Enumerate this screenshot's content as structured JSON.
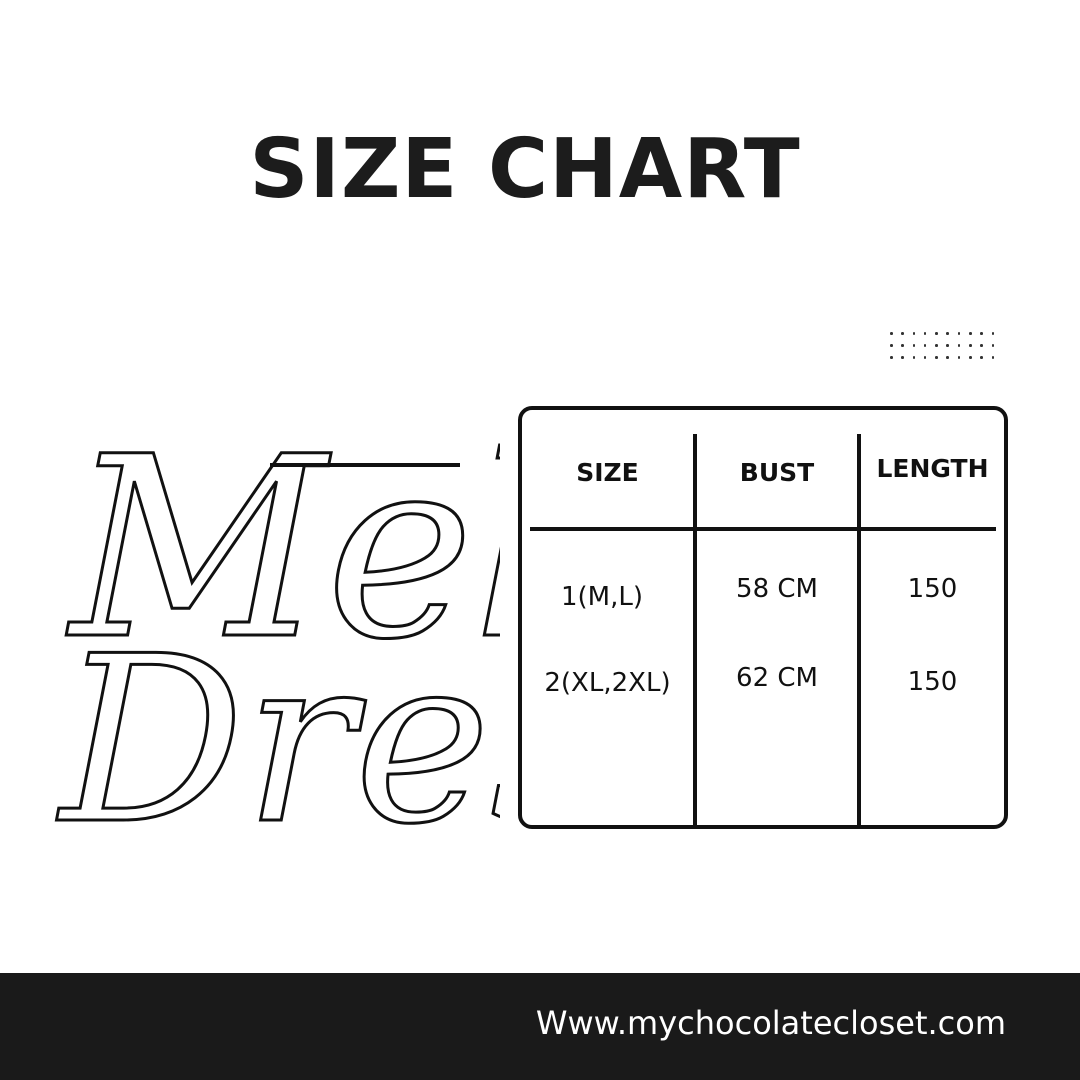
{
  "title": "SIZE CHART",
  "script_title": {
    "line1": "Melt",
    "line2": "Dress"
  },
  "table": {
    "headers": [
      "SIZE",
      "BUST",
      "LENGTH"
    ],
    "rows": [
      [
        "1(M,L)",
        "58 CM",
        "150"
      ],
      [
        "2(XL,2XL)",
        "62 CM",
        "150"
      ]
    ]
  },
  "footer": {
    "url": "Www.mychocolatecloset.com",
    "background": "#1a1a1a"
  }
}
